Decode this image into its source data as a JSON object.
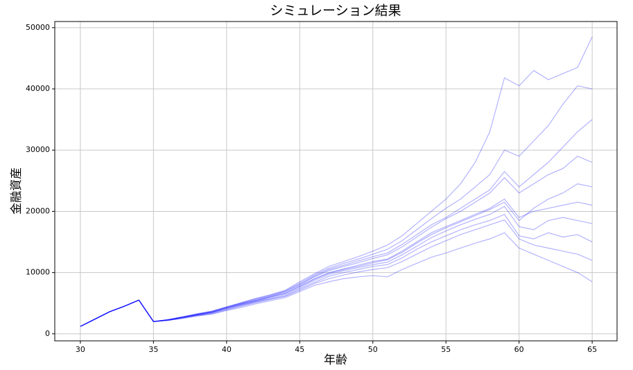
{
  "chart_data": {
    "type": "line",
    "title": "シミュレーション結果",
    "x_label": "年齢",
    "y_label": "金融資産",
    "x": [
      30,
      31,
      32,
      33,
      34,
      35,
      36,
      37,
      38,
      39,
      40,
      41,
      42,
      43,
      44,
      45,
      46,
      47,
      48,
      49,
      50,
      51,
      52,
      53,
      54,
      55,
      56,
      57,
      58,
      59,
      60,
      61,
      62,
      63,
      64,
      65
    ],
    "color": "#0000ff",
    "alpha": 0.3,
    "grid": true,
    "xlim": [
      28.25,
      66.7
    ],
    "xticks": [
      30,
      35,
      40,
      45,
      50,
      55,
      60,
      65
    ],
    "ylim": [
      -1150,
      51000
    ],
    "yticks": [
      0,
      10000,
      20000,
      30000,
      40000,
      50000
    ],
    "series": [
      {
        "values": [
          1200,
          2400,
          3600,
          4500,
          5500,
          2000,
          2300,
          2700,
          3200,
          3700,
          4400,
          5100,
          5800,
          6400,
          7100,
          8500,
          9800,
          11000,
          11800,
          12600,
          13500,
          14500,
          16000,
          18000,
          20000,
          22000,
          24500,
          28000,
          33000,
          41800,
          40500,
          43000,
          41500,
          42500,
          43500,
          48500
        ]
      },
      {
        "values": [
          1200,
          2400,
          3600,
          4500,
          5500,
          2000,
          2200,
          2500,
          2900,
          3200,
          3800,
          4300,
          4900,
          5400,
          5900,
          6900,
          7900,
          8500,
          9000,
          9300,
          9500,
          9300,
          10500,
          11500,
          12500,
          13200,
          14000,
          14800,
          15500,
          16500,
          14000,
          13000,
          12000,
          11000,
          10000,
          8500
        ]
      },
      {
        "values": [
          1200,
          2400,
          3600,
          4500,
          5500,
          2000,
          2300,
          2800,
          3200,
          3600,
          4300,
          5000,
          5600,
          6200,
          6900,
          8100,
          9400,
          10500,
          11200,
          11900,
          12600,
          13200,
          14600,
          16200,
          17800,
          19000,
          20500,
          22000,
          23500,
          26500,
          24000,
          26000,
          28000,
          30500,
          33000,
          35000
        ]
      },
      {
        "values": [
          1200,
          2400,
          3600,
          4500,
          5500,
          2000,
          2300,
          2700,
          3100,
          3500,
          4200,
          4800,
          5400,
          6000,
          6600,
          7800,
          9000,
          10000,
          10600,
          11200,
          11800,
          12200,
          13500,
          15000,
          16500,
          17500,
          18500,
          19500,
          20500,
          22000,
          19000,
          20000,
          20500,
          21000,
          21500,
          21000
        ]
      },
      {
        "values": [
          1200,
          2400,
          3600,
          4500,
          5500,
          2000,
          2200,
          2600,
          3000,
          3400,
          4000,
          4600,
          5200,
          5700,
          6200,
          7300,
          8400,
          9400,
          10000,
          10500,
          11000,
          11300,
          12400,
          13800,
          15000,
          16000,
          17000,
          17800,
          18500,
          19500,
          16000,
          15500,
          16500,
          15800,
          16200,
          15000
        ]
      },
      {
        "values": [
          1200,
          2400,
          3600,
          4500,
          5500,
          2000,
          2300,
          2700,
          3200,
          3600,
          4300,
          4900,
          5500,
          6100,
          6800,
          8000,
          9300,
          10300,
          11000,
          11600,
          12300,
          12900,
          14200,
          15800,
          17400,
          18800,
          20000,
          21500,
          23000,
          25500,
          23000,
          24500,
          26000,
          27000,
          29000,
          28000
        ]
      },
      {
        "values": [
          1200,
          2400,
          3600,
          4500,
          5500,
          2000,
          2200,
          2600,
          3000,
          3300,
          3900,
          4500,
          5100,
          5600,
          6100,
          7100,
          8200,
          9000,
          9600,
          10100,
          10500,
          10800,
          11800,
          13000,
          14200,
          15200,
          16200,
          17000,
          17800,
          18600,
          15500,
          14500,
          14000,
          13500,
          13000,
          12000
        ]
      },
      {
        "values": [
          1200,
          2400,
          3600,
          4500,
          5500,
          2000,
          2300,
          2800,
          3300,
          3700,
          4400,
          5000,
          5700,
          6300,
          7000,
          8300,
          9600,
          10700,
          11500,
          12200,
          13000,
          13800,
          15200,
          17000,
          18800,
          20500,
          22000,
          24000,
          26000,
          30000,
          29000,
          31500,
          34000,
          37500,
          40500,
          40000
        ]
      },
      {
        "values": [
          1200,
          2400,
          3600,
          4500,
          5500,
          2000,
          2300,
          2700,
          3100,
          3500,
          4200,
          4800,
          5400,
          6000,
          6600,
          7700,
          8900,
          9900,
          10500,
          11000,
          11600,
          12100,
          13300,
          14800,
          16200,
          17300,
          18300,
          19300,
          20300,
          21500,
          18500,
          20500,
          22000,
          23000,
          24500,
          24000
        ]
      },
      {
        "values": [
          1200,
          2400,
          3600,
          4500,
          5500,
          2000,
          2200,
          2600,
          3100,
          3500,
          4100,
          4700,
          5300,
          5800,
          6400,
          7500,
          8700,
          9700,
          10300,
          10800,
          11300,
          11700,
          12900,
          14300,
          15700,
          16800,
          17800,
          18700,
          19500,
          20800,
          17500,
          17000,
          18500,
          19000,
          18500,
          18000
        ]
      }
    ]
  }
}
